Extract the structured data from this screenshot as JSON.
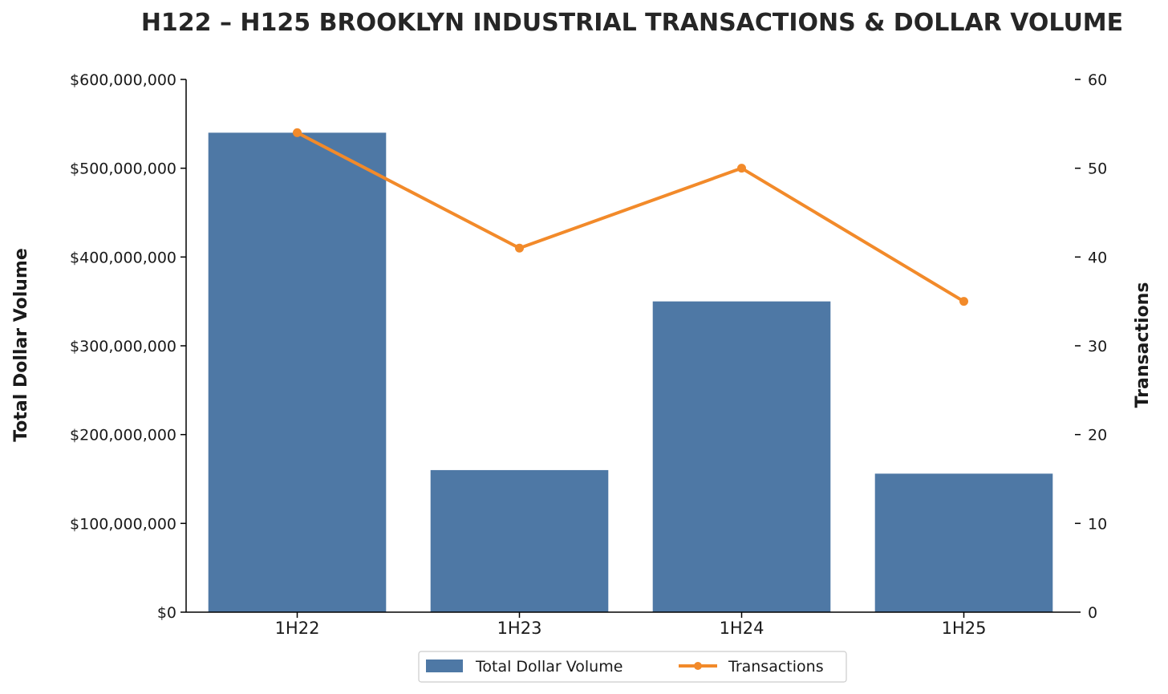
{
  "colors": {
    "bar": "#4e78a5",
    "line": "#f28a2a",
    "axis": "#000000",
    "text": "#1a1a1a"
  },
  "chart_data": {
    "type": "bar",
    "title": "H122 – H125 BROOKLYN INDUSTRIAL TRANSACTIONS & DOLLAR VOLUME",
    "categories": [
      "1H22",
      "1H23",
      "1H24",
      "1H25"
    ],
    "ylabel": "Total Dollar Volume",
    "ylabel_right": "Transactions",
    "ylim": [
      0,
      600000000
    ],
    "ylim_right": [
      0,
      60
    ],
    "yticks": [
      "$0",
      "$100,000,000",
      "$200,000,000",
      "$300,000,000",
      "$400,000,000",
      "$500,000,000",
      "$600,000,000"
    ],
    "yticks_right": [
      "0",
      "10",
      "20",
      "30",
      "40",
      "50",
      "60"
    ],
    "series": [
      {
        "name": "Total Dollar Volume",
        "type": "bar",
        "axis": "left",
        "values": [
          540000000,
          160000000,
          350000000,
          156000000
        ]
      },
      {
        "name": "Transactions",
        "type": "line",
        "axis": "right",
        "values": [
          54,
          41,
          50,
          35
        ]
      }
    ],
    "grid": false,
    "legend_position": "bottom-center"
  }
}
